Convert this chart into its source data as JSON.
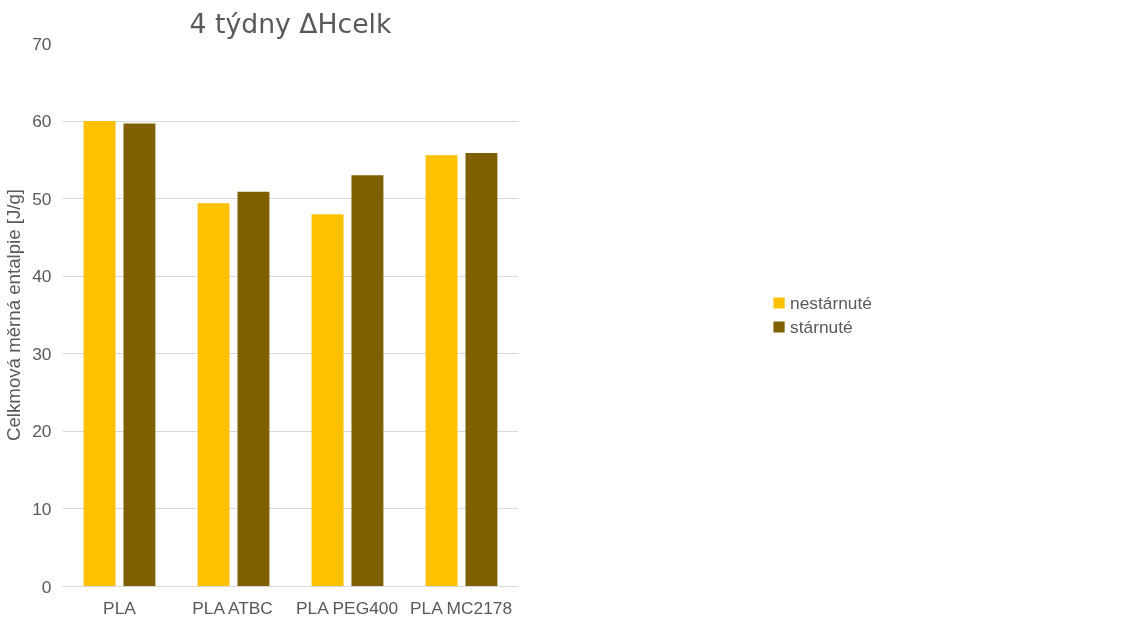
{
  "chart_data": {
    "type": "bar",
    "title": "4 týdny ΔHcelk",
    "ylabel": "Celkmová měrná entalpie [J/g]",
    "categories": [
      "PLA",
      "PLA ATBC",
      "PLA PEG400",
      "PLA MC2178"
    ],
    "series": [
      {
        "name": "nestárnuté",
        "color": "#ffc000",
        "values": [
          60.0,
          49.4,
          48.0,
          55.6
        ]
      },
      {
        "name": "stárnuté",
        "color": "#7f6000",
        "values": [
          59.7,
          50.9,
          53.0,
          55.9
        ]
      }
    ],
    "ylim": [
      0,
      70
    ],
    "yticks": [
      0,
      10,
      20,
      30,
      40,
      50,
      60,
      70
    ],
    "grid": "y",
    "legend": "right"
  }
}
